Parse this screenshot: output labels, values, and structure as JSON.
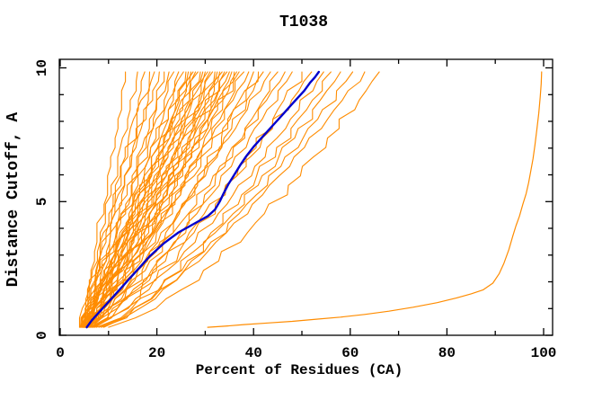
{
  "window": {
    "title": "T1038"
  },
  "colors": {
    "background": "#FFFFFF",
    "axis": "#000000",
    "text": "#000000",
    "ensemble": "#FF8C00",
    "highlight": "#0000CD"
  },
  "chart_data": {
    "type": "line",
    "title": "T1038",
    "xlabel": "Percent of Residues (CA)",
    "ylabel": "Distance Cutoff, A",
    "xlim": [
      0,
      102
    ],
    "ylim": [
      0,
      10.3
    ],
    "x_major_ticks": [
      0,
      20,
      40,
      60,
      80,
      100
    ],
    "x_minor_ticks": [
      10,
      30,
      50,
      70,
      90
    ],
    "y_major_ticks": [
      0,
      5,
      10
    ],
    "y_minor_ticks": [
      1,
      2,
      3,
      4,
      6,
      7,
      8,
      9
    ],
    "grid": false,
    "legend": "none",
    "series": {
      "highlight_model": {
        "name": "highlighted-model-curve",
        "color": "#0000CD",
        "width": 2.4,
        "points": [
          [
            5.5,
            0.3
          ],
          [
            6.5,
            0.55
          ],
          [
            8,
            0.85
          ],
          [
            9.5,
            1.15
          ],
          [
            11,
            1.45
          ],
          [
            12.5,
            1.75
          ],
          [
            14,
            2.05
          ],
          [
            15.5,
            2.35
          ],
          [
            17,
            2.65
          ],
          [
            18.5,
            2.95
          ],
          [
            20,
            3.2
          ],
          [
            21.5,
            3.45
          ],
          [
            23,
            3.65
          ],
          [
            24.5,
            3.85
          ],
          [
            26,
            4.0
          ],
          [
            27.5,
            4.15
          ],
          [
            29,
            4.3
          ],
          [
            30.5,
            4.45
          ],
          [
            32,
            4.7
          ],
          [
            33,
            5.0
          ],
          [
            33.8,
            5.3
          ],
          [
            34.8,
            5.65
          ],
          [
            36,
            6.0
          ],
          [
            37.2,
            6.35
          ],
          [
            38.5,
            6.7
          ],
          [
            40,
            7.05
          ],
          [
            41.5,
            7.35
          ],
          [
            43,
            7.65
          ],
          [
            44.5,
            7.95
          ],
          [
            46,
            8.25
          ],
          [
            47.5,
            8.55
          ],
          [
            49,
            8.85
          ],
          [
            50.5,
            9.15
          ],
          [
            51.7,
            9.45
          ],
          [
            52.7,
            9.65
          ],
          [
            53.5,
            9.85
          ]
        ]
      },
      "outlier_model": {
        "name": "outlier-model-curve",
        "color": "#FF8C00",
        "width": 1.2,
        "points": [
          [
            30.5,
            0.3
          ],
          [
            34,
            0.34
          ],
          [
            38,
            0.4
          ],
          [
            43,
            0.46
          ],
          [
            48,
            0.52
          ],
          [
            53,
            0.6
          ],
          [
            58,
            0.68
          ],
          [
            63,
            0.78
          ],
          [
            68,
            0.9
          ],
          [
            73,
            1.05
          ],
          [
            78,
            1.22
          ],
          [
            82,
            1.4
          ],
          [
            85,
            1.55
          ],
          [
            87.5,
            1.7
          ],
          [
            89.5,
            1.95
          ],
          [
            90.8,
            2.3
          ],
          [
            91.8,
            2.7
          ],
          [
            92.8,
            3.2
          ],
          [
            93.6,
            3.7
          ],
          [
            94.3,
            4.1
          ],
          [
            95.0,
            4.45
          ],
          [
            95.7,
            4.9
          ],
          [
            96.4,
            5.3
          ],
          [
            96.9,
            5.7
          ],
          [
            97.3,
            6.1
          ],
          [
            97.8,
            6.6
          ],
          [
            98.2,
            7.1
          ],
          [
            98.6,
            7.7
          ],
          [
            99.0,
            8.3
          ],
          [
            99.3,
            8.9
          ],
          [
            99.5,
            9.4
          ],
          [
            99.6,
            9.85
          ]
        ]
      },
      "ensemble_models": {
        "name": "ensemble-model-curves",
        "color": "#FF8C00",
        "width": 1.1,
        "y_start": 0.3,
        "y_end": 9.85,
        "curves": [
          {
            "s": 4.0,
            "t": 13.5,
            "b": 1.0,
            "d": 1
          },
          {
            "s": 4.2,
            "t": 16.0,
            "b": 1.05,
            "d": 2
          },
          {
            "s": 4.5,
            "t": 17.5,
            "b": 0.98,
            "d": 3
          },
          {
            "s": 4.0,
            "t": 18.5,
            "b": 1.08,
            "d": 4
          },
          {
            "s": 4.8,
            "t": 19.5,
            "b": 1.0,
            "d": 5
          },
          {
            "s": 4.3,
            "t": 20.5,
            "b": 1.1,
            "d": 6
          },
          {
            "s": 5.0,
            "t": 21.5,
            "b": 0.95,
            "d": 7
          },
          {
            "s": 4.2,
            "t": 22.5,
            "b": 1.05,
            "d": 8
          },
          {
            "s": 4.6,
            "t": 23.5,
            "b": 1.0,
            "d": 9
          },
          {
            "s": 5.2,
            "t": 24.5,
            "b": 0.92,
            "d": 10
          },
          {
            "s": 4.1,
            "t": 25.5,
            "b": 1.06,
            "d": 11
          },
          {
            "s": 4.9,
            "t": 26.0,
            "b": 0.98,
            "d": 12
          },
          {
            "s": 5.5,
            "t": 26.5,
            "b": 0.9,
            "d": 13
          },
          {
            "s": 4.4,
            "t": 27.0,
            "b": 1.02,
            "d": 14
          },
          {
            "s": 5.0,
            "t": 27.5,
            "b": 0.96,
            "d": 15
          },
          {
            "s": 4.7,
            "t": 28.0,
            "b": 1.0,
            "d": 16
          },
          {
            "s": 5.8,
            "t": 28.5,
            "b": 0.88,
            "d": 17
          },
          {
            "s": 4.3,
            "t": 29.0,
            "b": 1.04,
            "d": 18
          },
          {
            "s": 5.1,
            "t": 29.5,
            "b": 0.94,
            "d": 19
          },
          {
            "s": 4.8,
            "t": 30.0,
            "b": 0.99,
            "d": 20
          },
          {
            "s": 6.0,
            "t": 30.5,
            "b": 0.86,
            "d": 21
          },
          {
            "s": 4.5,
            "t": 31.0,
            "b": 1.02,
            "d": 22
          },
          {
            "s": 5.3,
            "t": 31.5,
            "b": 0.92,
            "d": 23
          },
          {
            "s": 4.9,
            "t": 32.0,
            "b": 0.97,
            "d": 24
          },
          {
            "s": 6.2,
            "t": 32.5,
            "b": 0.84,
            "d": 25
          },
          {
            "s": 4.6,
            "t": 33.0,
            "b": 1.0,
            "d": 26
          },
          {
            "s": 5.5,
            "t": 33.5,
            "b": 0.9,
            "d": 27
          },
          {
            "s": 5.0,
            "t": 34.0,
            "b": 0.95,
            "d": 28
          },
          {
            "s": 6.4,
            "t": 34.5,
            "b": 0.82,
            "d": 29
          },
          {
            "s": 4.7,
            "t": 35.0,
            "b": 0.98,
            "d": 30
          },
          {
            "s": 5.6,
            "t": 35.5,
            "b": 0.88,
            "d": 31
          },
          {
            "s": 5.1,
            "t": 36.0,
            "b": 0.93,
            "d": 32
          },
          {
            "s": 6.6,
            "t": 36.5,
            "b": 0.8,
            "d": 33
          },
          {
            "s": 4.8,
            "t": 37.0,
            "b": 0.96,
            "d": 34
          },
          {
            "s": 5.8,
            "t": 38.0,
            "b": 0.86,
            "d": 35
          },
          {
            "s": 5.2,
            "t": 39.0,
            "b": 0.9,
            "d": 36
          },
          {
            "s": 6.8,
            "t": 40.0,
            "b": 0.78,
            "d": 37
          },
          {
            "s": 5.0,
            "t": 41.0,
            "b": 0.92,
            "d": 38
          },
          {
            "s": 6.0,
            "t": 42.0,
            "b": 0.82,
            "d": 39
          },
          {
            "s": 5.4,
            "t": 43.5,
            "b": 0.87,
            "d": 40
          },
          {
            "s": 7.0,
            "t": 45.0,
            "b": 0.76,
            "d": 41
          },
          {
            "s": 5.6,
            "t": 46.5,
            "b": 0.84,
            "d": 42
          },
          {
            "s": 6.2,
            "t": 48.0,
            "b": 0.79,
            "d": 43
          },
          {
            "s": 7.2,
            "t": 50.0,
            "b": 0.74,
            "d": 44
          },
          {
            "s": 5.8,
            "t": 52.0,
            "b": 0.8,
            "d": 45
          },
          {
            "s": 6.6,
            "t": 54.5,
            "b": 0.75,
            "d": 46
          },
          {
            "s": 7.5,
            "t": 56.0,
            "b": 0.72,
            "d": 47
          },
          {
            "s": 8.0,
            "t": 58.0,
            "b": 0.73,
            "d": 48
          },
          {
            "s": 8.5,
            "t": 60.5,
            "b": 0.74,
            "d": 49
          },
          {
            "s": 9.0,
            "t": 63.0,
            "b": 0.76,
            "d": 50
          },
          {
            "s": 10.0,
            "t": 66.0,
            "b": 0.68,
            "d": 51
          }
        ]
      }
    }
  }
}
